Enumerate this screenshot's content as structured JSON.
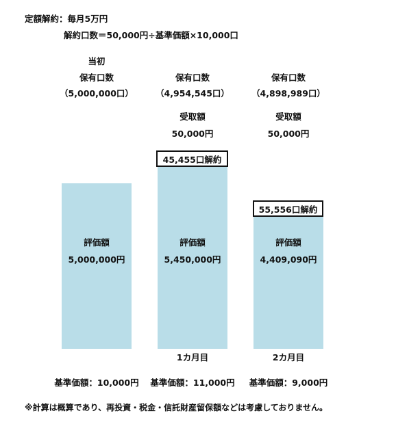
{
  "header": {
    "title": "定額解約：毎月5万円",
    "formula": "解約口数＝50,000円÷基準価額×10,000口"
  },
  "columns": [
    {
      "top_label": "当初",
      "holding_label": "保有口数",
      "holding_units": "（5,000,000口）",
      "received_label": "",
      "received_amount": "",
      "cancel_tag": "",
      "bar_label": "評価額",
      "bar_value": "5,000,000円",
      "period": "",
      "base_price": "基準価額：10,000円"
    },
    {
      "top_label": "",
      "holding_label": "保有口数",
      "holding_units": "（4,954,545口）",
      "received_label": "受取額",
      "received_amount": "50,000円",
      "cancel_tag": "45,455口解約",
      "bar_label": "評価額",
      "bar_value": "5,450,000円",
      "period": "1カ月目",
      "base_price": "基準価額：11,000円"
    },
    {
      "top_label": "",
      "holding_label": "保有口数",
      "holding_units": "（4,898,989口）",
      "received_label": "受取額",
      "received_amount": "50,000円",
      "cancel_tag": "55,556口解約",
      "bar_label": "評価額",
      "bar_value": "4,409,090円",
      "period": "2カ月目",
      "base_price": "基準価額：9,000円"
    }
  ],
  "footnote": "※計算は概算であり、再投資・税金・信託財産留保額などは考慮しておりません。",
  "colors": {
    "bar": "#b9dde8",
    "tag_border": "#111111"
  }
}
